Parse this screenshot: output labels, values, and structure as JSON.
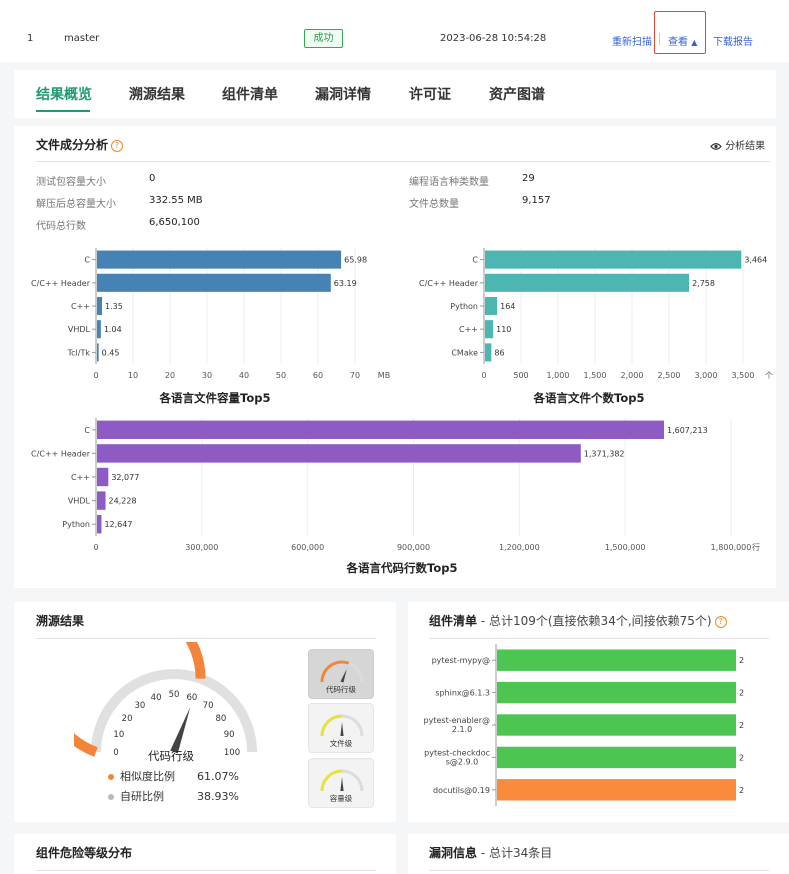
{
  "task_row": {
    "index": "1",
    "branch": "master",
    "status": "成功",
    "time": "2023-06-28 10:54:28",
    "actions": {
      "rescan": "重新扫描",
      "view": "查看",
      "download": "下载报告"
    }
  },
  "tabs": [
    "结果概览",
    "溯源结果",
    "组件清单",
    "漏洞详情",
    "许可证",
    "资产图谱"
  ],
  "file_analysis": {
    "title": "文件成分分析",
    "help": "?",
    "analyze_label": "分析结果",
    "stats_left": [
      {
        "label": "测试包容量大小",
        "value": "0"
      },
      {
        "label": "解压后总容量大小",
        "value": "332.55 MB"
      },
      {
        "label": "代码总行数",
        "value": "6,650,100"
      }
    ],
    "stats_right": [
      {
        "label": "编程语言种类数量",
        "value": "29"
      },
      {
        "label": "文件总数量",
        "value": "9,157"
      }
    ]
  },
  "chart_data": [
    {
      "type": "bar",
      "orientation": "horizontal",
      "title": "各语言文件容量Top5",
      "categories": [
        "C",
        "C/C++ Header",
        "C++",
        "VHDL",
        "Tcl/Tk"
      ],
      "values": [
        65.98,
        63.19,
        1.35,
        1.04,
        0.45
      ],
      "value_labels": [
        "65.98",
        "63.19",
        "1.35",
        "1.04",
        "0.45"
      ],
      "xlim": [
        0,
        70
      ],
      "ticks": [
        "0",
        "10",
        "20",
        "30",
        "40",
        "50",
        "60",
        "70"
      ],
      "unit": "MB",
      "color": "#4682b4"
    },
    {
      "type": "bar",
      "orientation": "horizontal",
      "title": "各语言文件个数Top5",
      "categories": [
        "C",
        "C/C++ Header",
        "Python",
        "C++",
        "CMake"
      ],
      "values": [
        3464,
        2758,
        164,
        110,
        86
      ],
      "value_labels": [
        "3,464",
        "2,758",
        "164",
        "110",
        "86"
      ],
      "xlim": [
        0,
        3500
      ],
      "ticks": [
        "0",
        "500",
        "1,000",
        "1,500",
        "2,000",
        "2,500",
        "3,000",
        "3,500"
      ],
      "unit": "个",
      "color": "#4db6b0"
    },
    {
      "type": "bar",
      "orientation": "horizontal",
      "title": "各语言代码行数Top5",
      "categories": [
        "C",
        "C/C++ Header",
        "C++",
        "VHDL",
        "Python"
      ],
      "values": [
        1607213,
        1371382,
        32077,
        24228,
        12647
      ],
      "value_labels": [
        "1,607,213",
        "1,371,382",
        "32,077",
        "24,228",
        "12,647"
      ],
      "xlim": [
        0,
        1800000
      ],
      "ticks": [
        "0",
        "300,000",
        "600,000",
        "900,000",
        "1,200,000",
        "1,500,000",
        "1,800,000"
      ],
      "unit": "行",
      "color": "#8e5bc4"
    },
    {
      "type": "bar",
      "orientation": "horizontal",
      "title": "",
      "categories": [
        "pytest-mypy@",
        "sphinx@6.1.3",
        "pytest-enabler@2.1.0",
        "pytest-checkdocs@2.9.0",
        "docutils@0.19"
      ],
      "category_lines": [
        [
          "pytest-mypy@"
        ],
        [
          "sphinx@6.1.3"
        ],
        [
          "pytest-enabler@",
          "2.1.0"
        ],
        [
          "pytest-checkdoc",
          "s@2.9.0"
        ],
        [
          "docutils@0.19"
        ]
      ],
      "values": [
        2,
        2,
        2,
        2,
        2
      ],
      "value_labels": [
        "2",
        "2",
        "2",
        "2",
        "2"
      ],
      "xlim": [
        0,
        2
      ],
      "colors": [
        "#4cc552",
        "#4cc552",
        "#4cc552",
        "#4cc552",
        "#fa8a3c"
      ]
    }
  ],
  "trace": {
    "title": "溯源结果",
    "gauge": {
      "value": 61.07,
      "min": 0,
      "max": 100,
      "ticks": [
        "0",
        "10",
        "20",
        "30",
        "40",
        "50",
        "60",
        "70",
        "80",
        "90",
        "100"
      ],
      "label": "代码行级",
      "fill_color": "#f5843b",
      "track_color": "#e0e0e0"
    },
    "legend": [
      {
        "label": "相似度比例",
        "value": "61.07%",
        "color": "#f5843b"
      },
      {
        "label": "自研比例",
        "value": "38.93%",
        "color": "#bbbbbb"
      }
    ],
    "mini_gauges": [
      {
        "label": "代码行级",
        "level": 0.61,
        "color": "#f5843b",
        "selected": true
      },
      {
        "label": "文件级",
        "level": 0.5,
        "color": "#e8e23c",
        "selected": false
      },
      {
        "label": "容量级",
        "level": 0.5,
        "color": "#e8e23c",
        "selected": false
      }
    ]
  },
  "components": {
    "title": "组件清单",
    "subtitle": " - 总计109个(直接依赖34个,间接依赖75个)",
    "help": "?"
  },
  "risk": {
    "title": "组件危险等级分布"
  },
  "vuln": {
    "title": "漏洞信息",
    "subtitle": " - 总计34条目"
  }
}
